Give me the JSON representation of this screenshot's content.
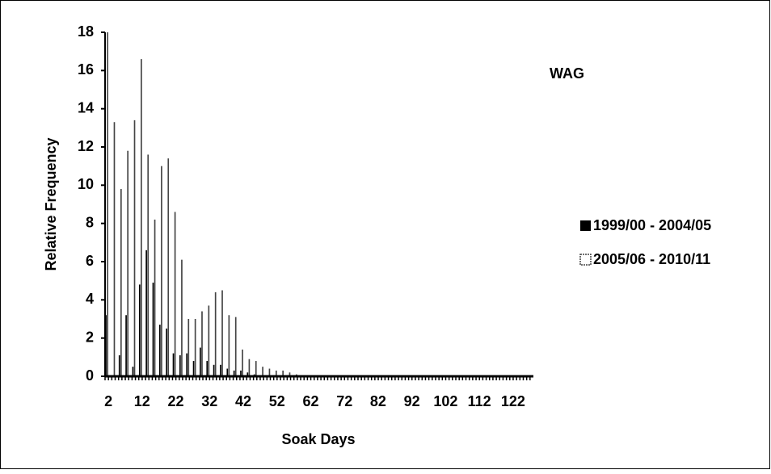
{
  "chart_data": {
    "type": "bar",
    "title": "WAG",
    "xlabel": "Soak Days",
    "ylabel": "Relative Frequency",
    "categories": [
      "2",
      null,
      null,
      null,
      null,
      null,
      null,
      null,
      null,
      null,
      "12",
      null,
      null,
      null,
      null,
      null,
      null,
      null,
      null,
      null,
      "22",
      null,
      null,
      null,
      null,
      null,
      null,
      null,
      null,
      null,
      "32",
      null,
      null,
      null,
      null,
      null,
      null,
      null,
      null,
      null,
      "42",
      null,
      null,
      null,
      null,
      null,
      null,
      null,
      null,
      null,
      "52",
      null,
      null,
      null,
      null,
      null,
      null,
      null,
      null,
      null,
      "62",
      null,
      null,
      null,
      null,
      null,
      null,
      null,
      null,
      null,
      "72",
      null,
      null,
      null,
      null,
      null,
      null,
      null,
      null,
      null,
      "82",
      null,
      null,
      null,
      null,
      null,
      null,
      null,
      null,
      null,
      "92",
      null,
      null,
      null,
      null,
      null,
      null,
      null,
      null,
      null,
      "102",
      null,
      null,
      null,
      null,
      null,
      null,
      null,
      null,
      null,
      "112",
      null,
      null,
      null,
      null,
      null,
      null,
      null,
      null,
      null,
      "122",
      null,
      null,
      null,
      null,
      null,
      null
    ],
    "series": [
      {
        "name": "1999/00 - 2004/05",
        "color": "#000000",
        "values": [
          3.2,
          0,
          0,
          0,
          1.1,
          0,
          3.2,
          0,
          0.5,
          0,
          4.8,
          0,
          6.6,
          0,
          4.9,
          0,
          2.7,
          0,
          2.5,
          0,
          1.2,
          0,
          1.1,
          0,
          1.2,
          0,
          0.8,
          0,
          1.5,
          0,
          0.8,
          0,
          0.6,
          0,
          0.6,
          0,
          0.4,
          0,
          0.3,
          0,
          0.3,
          0,
          0.2,
          0,
          0.1,
          0,
          0,
          0,
          0,
          0,
          0,
          0,
          0,
          0,
          0,
          0,
          0,
          0,
          0,
          0,
          0,
          0,
          0,
          0,
          0,
          0,
          0,
          0,
          0,
          0,
          0,
          0,
          0,
          0,
          0,
          0,
          0,
          0,
          0,
          0,
          0,
          0,
          0,
          0,
          0,
          0,
          0,
          0,
          0,
          0,
          0,
          0,
          0,
          0,
          0,
          0,
          0,
          0,
          0,
          0,
          0,
          0,
          0,
          0,
          0,
          0,
          0,
          0,
          0,
          0,
          0,
          0,
          0,
          0,
          0,
          0,
          0,
          0,
          0,
          0,
          0,
          0,
          0,
          0,
          0,
          0,
          0
        ]
      },
      {
        "name": "2005/06 - 2010/11",
        "color": "#444444",
        "values": [
          18,
          0,
          13.3,
          0,
          9.8,
          0,
          11.8,
          0,
          13.4,
          0,
          16.6,
          0,
          11.6,
          0,
          8.2,
          0,
          11.0,
          0,
          11.4,
          0,
          8.6,
          0,
          6.1,
          0,
          3.0,
          0,
          3.0,
          0,
          3.4,
          0,
          3.7,
          0,
          4.4,
          0,
          4.5,
          0,
          3.2,
          0,
          3.1,
          0,
          1.4,
          0,
          0.9,
          0,
          0.8,
          0,
          0.5,
          0,
          0.4,
          0,
          0.3,
          0,
          0.3,
          0,
          0.2,
          0,
          0.1,
          0,
          0,
          0,
          0,
          0,
          0,
          0,
          0,
          0,
          0,
          0,
          0,
          0,
          0,
          0,
          0,
          0,
          0,
          0,
          0,
          0,
          0,
          0,
          0,
          0,
          0,
          0,
          0,
          0,
          0,
          0,
          0,
          0,
          0,
          0,
          0,
          0,
          0,
          0,
          0,
          0,
          0,
          0,
          0,
          0,
          0,
          0,
          0,
          0,
          0,
          0,
          0,
          0,
          0,
          0,
          0,
          0,
          0,
          0,
          0,
          0,
          0,
          0,
          0,
          0,
          0,
          0,
          0,
          0,
          0
        ]
      }
    ],
    "ylim": [
      0,
      18
    ],
    "yticks": [
      0,
      2,
      4,
      6,
      8,
      10,
      12,
      14,
      16,
      18
    ],
    "grid": false,
    "legend": "right"
  }
}
